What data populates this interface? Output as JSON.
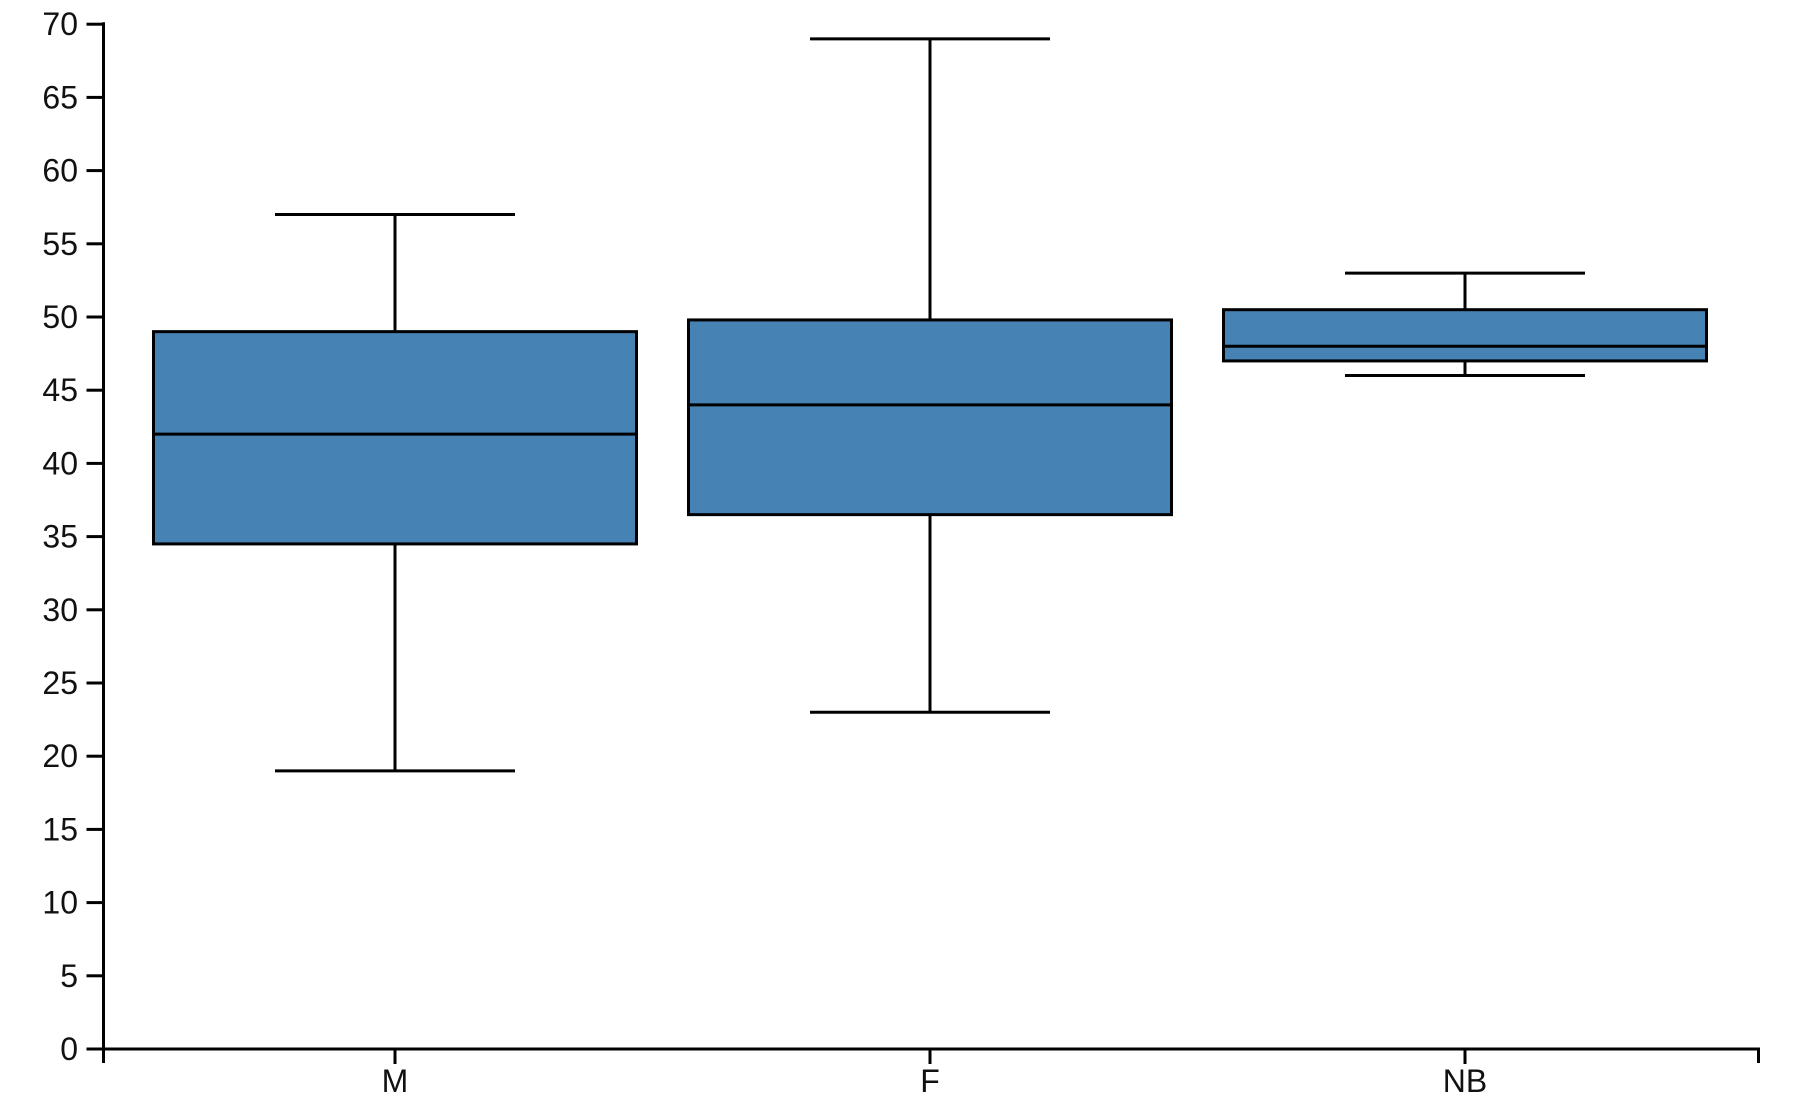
{
  "chart_data": {
    "type": "boxplot",
    "title": "",
    "xlabel": "",
    "ylabel": "",
    "categories": [
      "M",
      "F",
      "NB"
    ],
    "series": [
      {
        "category": "M",
        "whisker_low": 19,
        "q1": 34.5,
        "median": 42,
        "q3": 49,
        "whisker_high": 57
      },
      {
        "category": "F",
        "whisker_low": 23,
        "q1": 36.5,
        "median": 44,
        "q3": 49.8,
        "whisker_high": 69
      },
      {
        "category": "NB",
        "whisker_low": 46,
        "q1": 47,
        "median": 48,
        "q3": 50.5,
        "whisker_high": 53
      }
    ],
    "outliers": [],
    "ylim": [
      0,
      70
    ],
    "yticks": [
      0,
      5,
      10,
      15,
      20,
      25,
      30,
      35,
      40,
      45,
      50,
      55,
      60,
      65,
      70
    ],
    "grid": false,
    "legend": null,
    "colors": {
      "box_fill": "#4682B4",
      "box_edge": "#000000",
      "median": "#000000",
      "whisker": "#000000",
      "axis": "#000000",
      "background": "#FFFFFF"
    }
  }
}
